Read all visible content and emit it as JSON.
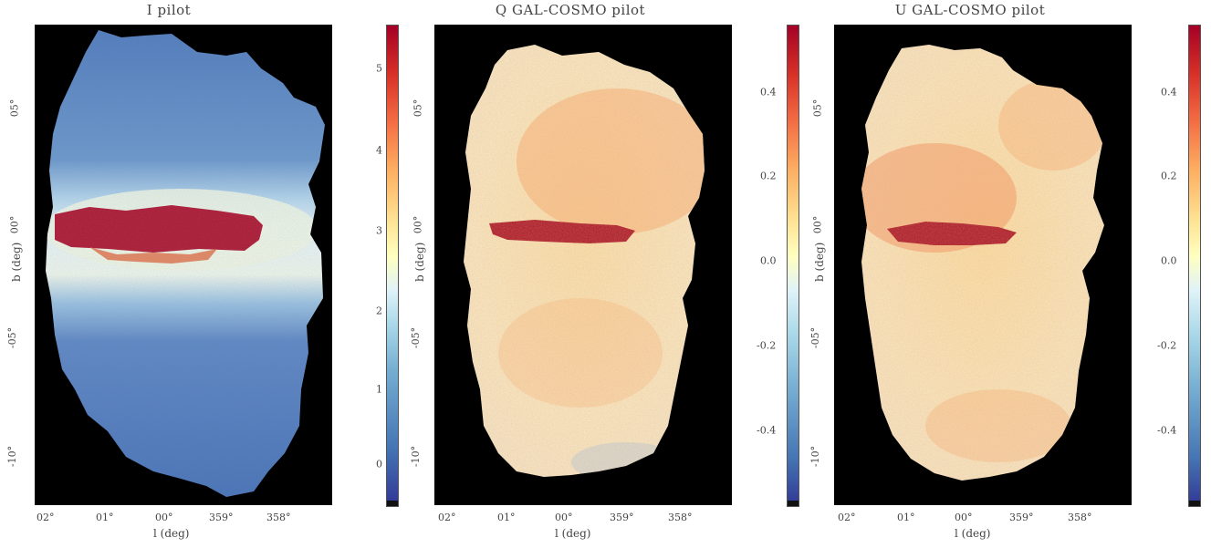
{
  "panels": [
    {
      "title": "I pilot",
      "xlabel": "l (deg)",
      "ylabel": "b (deg)",
      "xticks": [
        "02°",
        "01°",
        "00°",
        "359°",
        "358°"
      ],
      "yticks": [
        "05°",
        "00°",
        "-05°",
        "-10°"
      ],
      "colorbar_ticks": [
        "5",
        "4",
        "3",
        "2",
        "1",
        "0"
      ],
      "colormap": "RdYlBu_r",
      "colors": {
        "low": "#3b5ba8",
        "mid": "#ffffbf",
        "high": "#b2182b"
      }
    },
    {
      "title": "Q GAL-COSMO pilot",
      "xlabel": "l (deg)",
      "ylabel": "b (deg)",
      "xticks": [
        "02°",
        "01°",
        "00°",
        "359°",
        "358°"
      ],
      "yticks": [
        "05°",
        "00°",
        "-05°",
        "-10°"
      ],
      "colorbar_ticks": [
        "0.4",
        "0.2",
        "0.0",
        "-0.2",
        "-0.4"
      ],
      "colormap": "RdYlBu_r",
      "colors": {
        "low": "#3b5ba8",
        "mid": "#ffffbf",
        "high": "#b2182b"
      }
    },
    {
      "title": "U GAL-COSMO pilot",
      "xlabel": "l (deg)",
      "ylabel": "b (deg)",
      "xticks": [
        "02°",
        "01°",
        "00°",
        "359°",
        "358°"
      ],
      "yticks": [
        "05°",
        "00°",
        "-05°",
        "-10°"
      ],
      "colorbar_ticks": [
        "0.4",
        "0.2",
        "0.0",
        "-0.2",
        "-0.4"
      ],
      "colormap": "RdYlBu_r",
      "colors": {
        "low": "#3b5ba8",
        "mid": "#ffffbf",
        "high": "#b2182b"
      }
    }
  ]
}
